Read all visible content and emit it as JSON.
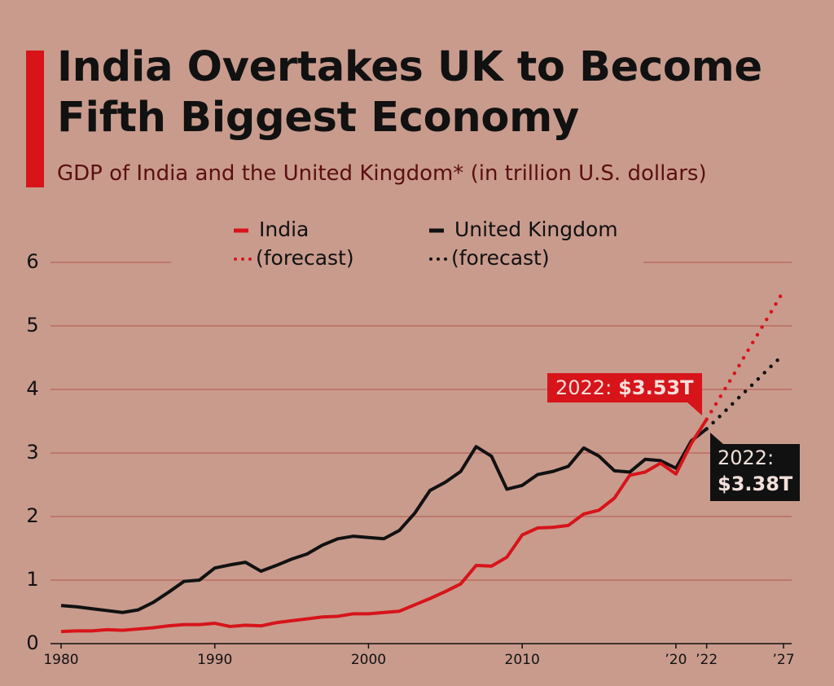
{
  "chart_data": {
    "type": "line",
    "title": "India Overtakes UK to Become Fifth Biggest Economy",
    "subtitle": "GDP of India and the United Kingdom* (in trillion U.S. dollars)",
    "xlim": [
      1980,
      2027
    ],
    "xticks": [
      1980,
      1990,
      2000,
      2010,
      {
        "value": 2020,
        "label": "’20"
      },
      {
        "value": 2022,
        "label": "’22"
      },
      {
        "value": 2027,
        "label": "’27"
      }
    ],
    "ylim": [
      0,
      6
    ],
    "yticks": [
      0,
      1,
      2,
      3,
      4,
      5,
      6
    ],
    "grid": true,
    "series": [
      {
        "name": "India",
        "color": "#d7141a",
        "style": "solid",
        "x": [
          1980,
          1981,
          1982,
          1983,
          1984,
          1985,
          1986,
          1987,
          1988,
          1989,
          1990,
          1991,
          1992,
          1993,
          1994,
          1995,
          1996,
          1997,
          1998,
          1999,
          2000,
          2001,
          2002,
          2003,
          2004,
          2005,
          2006,
          2007,
          2008,
          2009,
          2010,
          2011,
          2012,
          2013,
          2014,
          2015,
          2016,
          2017,
          2018,
          2019,
          2020,
          2021,
          2022
        ],
        "values": [
          0.19,
          0.2,
          0.2,
          0.22,
          0.21,
          0.23,
          0.25,
          0.28,
          0.3,
          0.3,
          0.32,
          0.27,
          0.29,
          0.28,
          0.33,
          0.36,
          0.39,
          0.42,
          0.43,
          0.47,
          0.47,
          0.49,
          0.51,
          0.61,
          0.71,
          0.82,
          0.94,
          1.23,
          1.22,
          1.36,
          1.71,
          1.82,
          1.83,
          1.86,
          2.04,
          2.1,
          2.29,
          2.65,
          2.7,
          2.84,
          2.67,
          3.15,
          3.53
        ]
      },
      {
        "name": "(forecast)",
        "color": "#d7141a",
        "style": "dotted",
        "x": [
          2022,
          2023,
          2024,
          2025,
          2026,
          2027
        ],
        "values": [
          3.53,
          3.93,
          4.33,
          4.74,
          5.14,
          5.55
        ]
      },
      {
        "name": "United Kingdom",
        "color": "#111111",
        "style": "solid",
        "x": [
          1980,
          1981,
          1982,
          1983,
          1984,
          1985,
          1986,
          1987,
          1988,
          1989,
          1990,
          1991,
          1992,
          1993,
          1994,
          1995,
          1996,
          1997,
          1998,
          1999,
          2000,
          2001,
          2002,
          2003,
          2004,
          2005,
          2006,
          2007,
          2008,
          2009,
          2010,
          2011,
          2012,
          2013,
          2014,
          2015,
          2016,
          2017,
          2018,
          2019,
          2020,
          2021,
          2022
        ],
        "values": [
          0.6,
          0.58,
          0.55,
          0.52,
          0.49,
          0.53,
          0.65,
          0.81,
          0.98,
          1.0,
          1.19,
          1.24,
          1.28,
          1.14,
          1.23,
          1.33,
          1.41,
          1.55,
          1.65,
          1.69,
          1.67,
          1.65,
          1.78,
          2.05,
          2.41,
          2.54,
          2.71,
          3.1,
          2.95,
          2.43,
          2.49,
          2.66,
          2.71,
          2.79,
          3.08,
          2.95,
          2.72,
          2.7,
          2.9,
          2.88,
          2.76,
          3.19,
          3.38
        ]
      },
      {
        "name": "(forecast)",
        "color": "#111111",
        "style": "dotted",
        "x": [
          2022,
          2023,
          2024,
          2025,
          2026,
          2027
        ],
        "values": [
          3.38,
          3.61,
          3.85,
          4.08,
          4.32,
          4.55
        ]
      }
    ],
    "annotations": [
      {
        "label": "2022:",
        "value_text": "$3.53T"
      },
      {
        "label": "2022:",
        "value_text": "$3.38T"
      }
    ]
  }
}
